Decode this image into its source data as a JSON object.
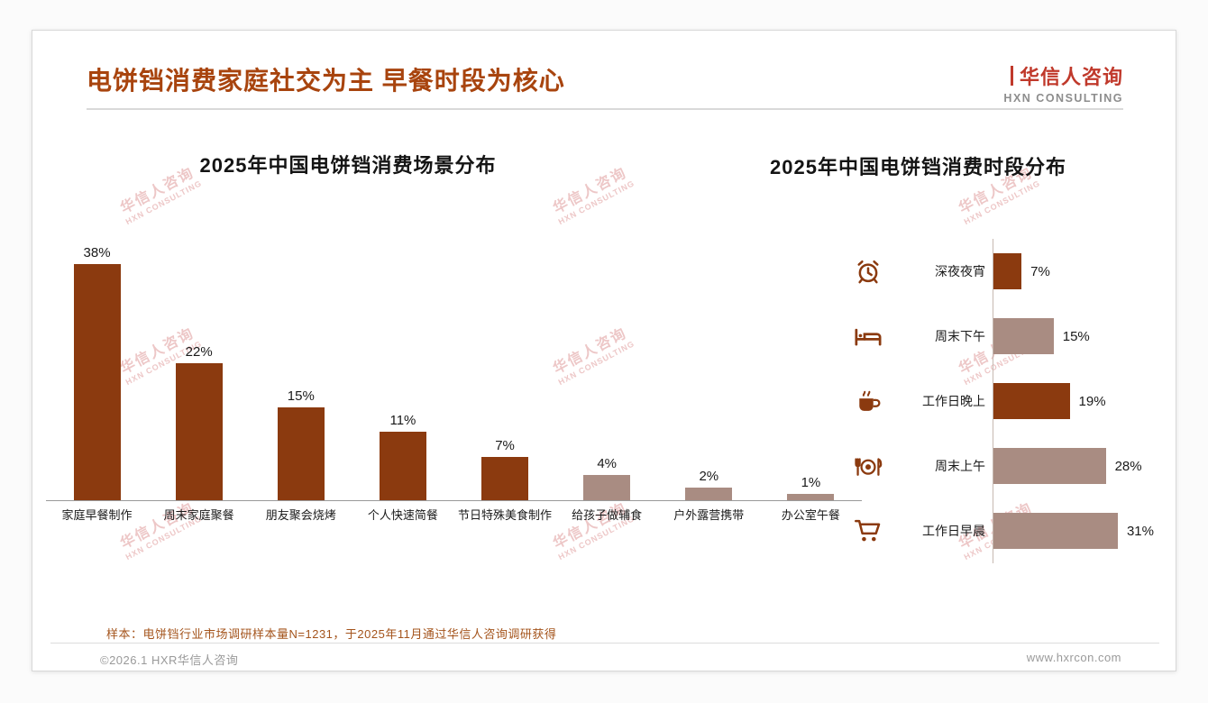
{
  "page": {
    "title": "电饼铛消费家庭社交为主 早餐时段为核心",
    "logo": {
      "name": "华信人咨询",
      "sub": "HXN CONSULTING"
    },
    "watermark": {
      "line1": "华信人咨询",
      "line2": "HXN CONSULTING"
    },
    "note": "样本：电饼铛行业市场调研样本量N=1231，于2025年11月通过华信人咨询调研获得",
    "footer": {
      "left": "©2026.1 HXR华信人咨询",
      "right": "www.hxrcon.com"
    }
  },
  "colors": {
    "dark": "#8b3a0f",
    "light": "#a98c82",
    "title": "#a8440e",
    "logo_red": "#c0392b"
  },
  "chart_data": [
    {
      "type": "bar",
      "orientation": "vertical",
      "title": "2025年中国电饼铛消费场景分布",
      "categories": [
        "家庭早餐制作",
        "周末家庭聚餐",
        "朋友聚会烧烤",
        "个人快速简餐",
        "节日特殊美食制作",
        "给孩子做辅食",
        "户外露营携带",
        "办公室午餐"
      ],
      "values": [
        38,
        22,
        15,
        11,
        7,
        4,
        2,
        1
      ],
      "bar_colors": [
        "dark",
        "dark",
        "dark",
        "dark",
        "dark",
        "light",
        "light",
        "light"
      ],
      "unit": "%",
      "ylim": [
        0,
        40
      ],
      "grid": false,
      "legend": "none"
    },
    {
      "type": "bar",
      "orientation": "horizontal",
      "title": "2025年中国电饼铛消费时段分布",
      "categories": [
        "深夜夜宵",
        "周末下午",
        "工作日晚上",
        "周末上午",
        "工作日早晨"
      ],
      "values": [
        7,
        15,
        19,
        28,
        31
      ],
      "icons": [
        "alarm-clock",
        "bed",
        "coffee",
        "dining",
        "cart"
      ],
      "bar_colors": [
        "dark",
        "light",
        "dark",
        "light",
        "light"
      ],
      "unit": "%",
      "xlim": [
        0,
        35
      ],
      "grid": false,
      "legend": "none"
    }
  ]
}
